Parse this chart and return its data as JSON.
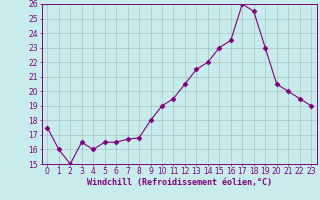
{
  "x": [
    0,
    1,
    2,
    3,
    4,
    5,
    6,
    7,
    8,
    9,
    10,
    11,
    12,
    13,
    14,
    15,
    16,
    17,
    18,
    19,
    20,
    21,
    22,
    23
  ],
  "y": [
    17.5,
    16.0,
    15.0,
    16.5,
    16.0,
    16.5,
    16.5,
    16.7,
    16.8,
    18.0,
    19.0,
    19.5,
    20.5,
    21.5,
    22.0,
    23.0,
    23.5,
    26.0,
    25.5,
    23.0,
    20.5,
    20.0,
    19.5,
    19.0
  ],
  "line_color": "#800080",
  "marker": "D",
  "marker_size": 2.5,
  "bg_color": "#c8ecec",
  "grid_color": "#a0b8b8",
  "ylim_min": 15,
  "ylim_max": 26,
  "yticks": [
    15,
    16,
    17,
    18,
    19,
    20,
    21,
    22,
    23,
    24,
    25,
    26
  ],
  "xticks": [
    0,
    1,
    2,
    3,
    4,
    5,
    6,
    7,
    8,
    9,
    10,
    11,
    12,
    13,
    14,
    15,
    16,
    17,
    18,
    19,
    20,
    21,
    22,
    23
  ],
  "xlabel": "Windchill (Refroidissement éolien,°C)",
  "label_color": "#800080",
  "tick_fontsize": 5.5,
  "xlabel_fontsize": 6.0
}
